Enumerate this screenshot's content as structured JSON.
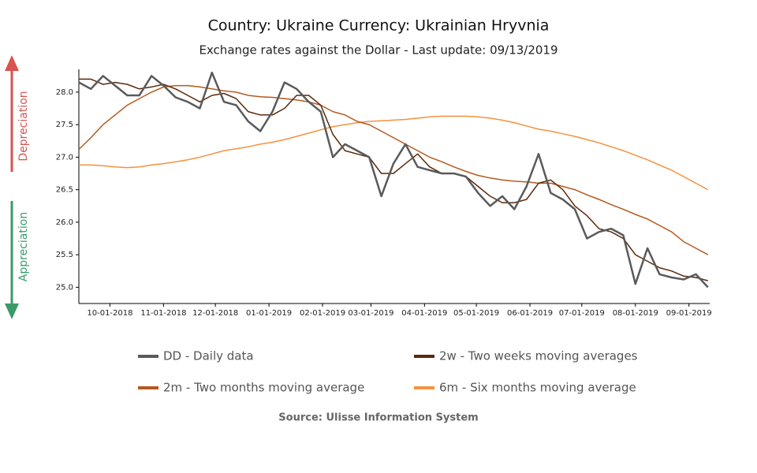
{
  "chart_data": {
    "type": "line",
    "title": "Country: Ukraine Currency: Ukrainian Hryvnia",
    "subtitle": "Exchange rates against the Dollar - Last update: 09/13/2019",
    "depreciation_label": "Depreciation",
    "appreciation_label": "Appreciation",
    "source": "Source: Ulisse Information System",
    "xlim": [
      "2018-09-13",
      "2019-09-13"
    ],
    "ylim": [
      24.75,
      28.35
    ],
    "xticks": [
      {
        "value": "2018-10-01",
        "label": "10-01-2018"
      },
      {
        "value": "2018-11-01",
        "label": "11-01-2018"
      },
      {
        "value": "2018-12-01",
        "label": "12-01-2018"
      },
      {
        "value": "2019-01-01",
        "label": "01-01-2019"
      },
      {
        "value": "2019-02-01",
        "label": "02-01-2019"
      },
      {
        "value": "2019-03-01",
        "label": "03-01-2019"
      },
      {
        "value": "2019-04-01",
        "label": "04-01-2019"
      },
      {
        "value": "2019-05-01",
        "label": "05-01-2019"
      },
      {
        "value": "2019-06-01",
        "label": "06-01-2019"
      },
      {
        "value": "2019-07-01",
        "label": "07-01-2019"
      },
      {
        "value": "2019-08-01",
        "label": "08-01-2019"
      },
      {
        "value": "2019-09-01",
        "label": "09-01-2019"
      }
    ],
    "yticks": [
      {
        "value": 25,
        "label": "25.0"
      },
      {
        "value": 25.5,
        "label": "25.5"
      },
      {
        "value": 26,
        "label": "26.0"
      },
      {
        "value": 26.5,
        "label": "26.5"
      },
      {
        "value": 27,
        "label": "27.0"
      },
      {
        "value": 27.5,
        "label": "27.5"
      },
      {
        "value": 28,
        "label": "28.0"
      }
    ],
    "x": [
      "2018-09-13",
      "2018-09-20",
      "2018-09-27",
      "2018-10-04",
      "2018-10-11",
      "2018-10-18",
      "2018-10-25",
      "2018-11-01",
      "2018-11-08",
      "2018-11-15",
      "2018-11-22",
      "2018-11-29",
      "2018-12-06",
      "2018-12-13",
      "2018-12-20",
      "2018-12-27",
      "2019-01-03",
      "2019-01-10",
      "2019-01-17",
      "2019-01-24",
      "2019-01-31",
      "2019-02-07",
      "2019-02-14",
      "2019-02-21",
      "2019-02-28",
      "2019-03-07",
      "2019-03-14",
      "2019-03-21",
      "2019-03-28",
      "2019-04-04",
      "2019-04-11",
      "2019-04-18",
      "2019-04-25",
      "2019-05-02",
      "2019-05-09",
      "2019-05-16",
      "2019-05-23",
      "2019-05-30",
      "2019-06-06",
      "2019-06-13",
      "2019-06-20",
      "2019-06-27",
      "2019-07-04",
      "2019-07-11",
      "2019-07-18",
      "2019-07-25",
      "2019-08-01",
      "2019-08-08",
      "2019-08-15",
      "2019-08-22",
      "2019-08-29",
      "2019-09-05",
      "2019-09-12"
    ],
    "series": [
      {
        "name": "DD - Daily data",
        "color": "#5a5a5a",
        "width": 2.5,
        "values": [
          28.15,
          28.05,
          28.25,
          28.1,
          27.95,
          27.95,
          28.25,
          28.1,
          27.92,
          27.85,
          27.75,
          28.3,
          27.85,
          27.8,
          27.55,
          27.4,
          27.7,
          28.15,
          28.05,
          27.85,
          27.7,
          27.0,
          27.2,
          27.1,
          27.0,
          26.4,
          26.9,
          27.2,
          26.85,
          26.8,
          26.75,
          26.75,
          26.7,
          26.45,
          26.25,
          26.4,
          26.2,
          26.55,
          27.05,
          26.45,
          26.35,
          26.2,
          25.75,
          25.85,
          25.9,
          25.8,
          25.05,
          25.6,
          25.2,
          25.15,
          25.12,
          25.2,
          25.0
        ]
      },
      {
        "name": "2w - Two weeks moving averages",
        "color": "#5a2a0a",
        "width": 1.5,
        "values": [
          28.2,
          28.2,
          28.12,
          28.15,
          28.12,
          28.05,
          28.08,
          28.12,
          28.05,
          27.95,
          27.85,
          27.95,
          27.98,
          27.9,
          27.7,
          27.65,
          27.65,
          27.75,
          27.95,
          27.95,
          27.8,
          27.35,
          27.1,
          27.05,
          27.0,
          26.75,
          26.75,
          26.9,
          27.05,
          26.85,
          26.75,
          26.75,
          26.7,
          26.55,
          26.4,
          26.3,
          26.3,
          26.35,
          26.6,
          26.65,
          26.5,
          26.25,
          26.1,
          25.9,
          25.85,
          25.75,
          25.5,
          25.4,
          25.3,
          25.25,
          25.17,
          25.15,
          25.1
        ]
      },
      {
        "name": "2m - Two months moving average",
        "color": "#b35a1f",
        "width": 1.5,
        "values": [
          27.12,
          27.3,
          27.5,
          27.65,
          27.8,
          27.9,
          28.0,
          28.08,
          28.1,
          28.1,
          28.08,
          28.05,
          28.02,
          28.0,
          27.95,
          27.93,
          27.92,
          27.9,
          27.88,
          27.85,
          27.8,
          27.7,
          27.65,
          27.55,
          27.5,
          27.4,
          27.3,
          27.2,
          27.1,
          27.0,
          26.93,
          26.85,
          26.78,
          26.72,
          26.68,
          26.65,
          26.63,
          26.62,
          26.6,
          26.6,
          26.55,
          26.5,
          26.42,
          26.35,
          26.27,
          26.2,
          26.12,
          26.05,
          25.95,
          25.85,
          25.7,
          25.6,
          25.5
        ]
      },
      {
        "name": "6m - Six months moving average",
        "color": "#f5913f",
        "width": 1.5,
        "values": [
          26.88,
          26.88,
          26.87,
          26.85,
          26.84,
          26.85,
          26.88,
          26.9,
          26.93,
          26.96,
          27.0,
          27.05,
          27.1,
          27.13,
          27.16,
          27.2,
          27.23,
          27.27,
          27.32,
          27.37,
          27.42,
          27.47,
          27.5,
          27.53,
          27.55,
          27.56,
          27.57,
          27.58,
          27.6,
          27.62,
          27.63,
          27.63,
          27.63,
          27.62,
          27.6,
          27.57,
          27.53,
          27.48,
          27.43,
          27.4,
          27.36,
          27.32,
          27.27,
          27.22,
          27.16,
          27.1,
          27.03,
          26.96,
          26.88,
          26.8,
          26.7,
          26.6,
          26.5
        ]
      }
    ]
  }
}
